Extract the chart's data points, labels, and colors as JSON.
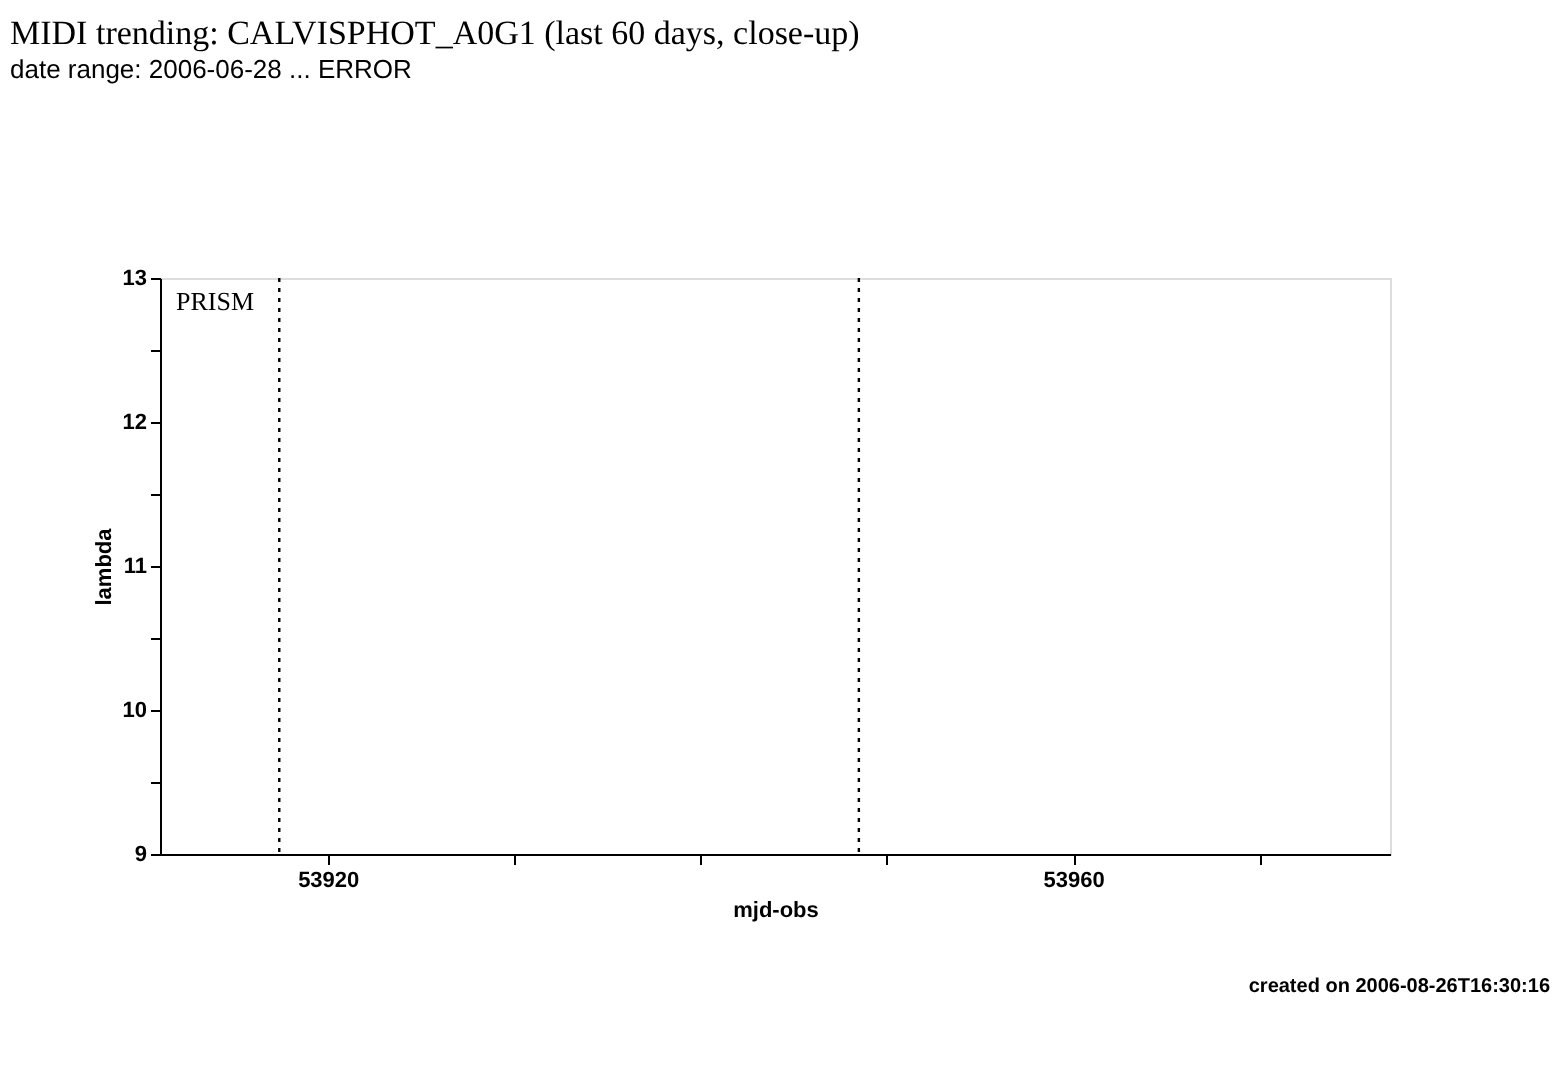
{
  "chart_data": {
    "type": "scatter",
    "title": "MIDI trending: CALVISPHOT_A0G1 (last 60 days, close-up)",
    "subtitle": "date range: 2006-06-28 ... ERROR",
    "xlabel": "mjd-obs",
    "ylabel": "lambda",
    "xlim": [
      53911,
      53977
    ],
    "xticks": [
      {
        "value": 53920,
        "label": "53920"
      },
      {
        "value": 53930,
        "label": null
      },
      {
        "value": 53940,
        "label": null
      },
      {
        "value": 53950,
        "label": null
      },
      {
        "value": 53960,
        "label": "53960"
      },
      {
        "value": 53970,
        "label": null
      }
    ],
    "ylim": [
      9,
      13
    ],
    "yticks": [
      9,
      {
        "value": 9.5,
        "label": null
      },
      10,
      {
        "value": 10.5,
        "label": null
      },
      11,
      {
        "value": 11.5,
        "label": null
      },
      12,
      {
        "value": 12.5,
        "label": null
      },
      13
    ],
    "ref_lines": [
      {
        "axis": "x",
        "value": 53917.4,
        "label": null,
        "color": "#000000",
        "line_style": "dotted"
      },
      {
        "axis": "x",
        "value": 53948.5,
        "label": null,
        "color": "#000000",
        "line_style": "dotted"
      }
    ],
    "annotations": [
      "PRISM",
      "created on 2006-08-26T16:30:16"
    ],
    "grid": false
  }
}
